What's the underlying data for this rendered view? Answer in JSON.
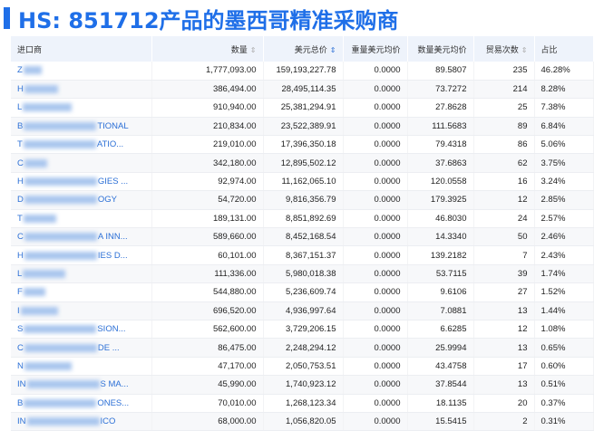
{
  "title": "HS: 851712产品的墨西哥精准采购商",
  "accent": "#1f6fe8",
  "columns": [
    {
      "label": "进口商",
      "sortable": false
    },
    {
      "label": "数量",
      "sortable": true
    },
    {
      "label": "美元总价",
      "sortable": true,
      "sort": "descending"
    },
    {
      "label": "重量美元均价",
      "sortable": false
    },
    {
      "label": "数量美元均价",
      "sortable": false
    },
    {
      "label": "贸易次数",
      "sortable": true
    },
    {
      "label": "占比",
      "sortable": false
    }
  ],
  "rows": [
    {
      "name_start": "Z",
      "name_end": "",
      "qty": "1,777,093.00",
      "total": "159,193,227.78",
      "wavg": "0.0000",
      "qavg": "89.5807",
      "count": "235",
      "pct": "46.28%"
    },
    {
      "name_start": "H",
      "name_end": "",
      "qty": "386,494.00",
      "total": "28,495,114.35",
      "wavg": "0.0000",
      "qavg": "73.7272",
      "count": "214",
      "pct": "8.28%"
    },
    {
      "name_start": "L",
      "name_end": "",
      "qty": "910,940.00",
      "total": "25,381,294.91",
      "wavg": "0.0000",
      "qavg": "27.8628",
      "count": "25",
      "pct": "7.38%"
    },
    {
      "name_start": "B",
      "name_end": "TIONAL",
      "qty": "210,834.00",
      "total": "23,522,389.91",
      "wavg": "0.0000",
      "qavg": "111.5683",
      "count": "89",
      "pct": "6.84%"
    },
    {
      "name_start": "T",
      "name_end": "ATIO...",
      "qty": "219,010.00",
      "total": "17,396,350.18",
      "wavg": "0.0000",
      "qavg": "79.4318",
      "count": "86",
      "pct": "5.06%"
    },
    {
      "name_start": "C",
      "name_end": "",
      "qty": "342,180.00",
      "total": "12,895,502.12",
      "wavg": "0.0000",
      "qavg": "37.6863",
      "count": "62",
      "pct": "3.75%"
    },
    {
      "name_start": "H",
      "name_end": "GIES ...",
      "qty": "92,974.00",
      "total": "11,162,065.10",
      "wavg": "0.0000",
      "qavg": "120.0558",
      "count": "16",
      "pct": "3.24%"
    },
    {
      "name_start": "D",
      "name_end": "OGY",
      "qty": "54,720.00",
      "total": "9,816,356.79",
      "wavg": "0.0000",
      "qavg": "179.3925",
      "count": "12",
      "pct": "2.85%"
    },
    {
      "name_start": "T",
      "name_end": "",
      "qty": "189,131.00",
      "total": "8,851,892.69",
      "wavg": "0.0000",
      "qavg": "46.8030",
      "count": "24",
      "pct": "2.57%"
    },
    {
      "name_start": "C",
      "name_end": "A INN...",
      "qty": "589,660.00",
      "total": "8,452,168.54",
      "wavg": "0.0000",
      "qavg": "14.3340",
      "count": "50",
      "pct": "2.46%"
    },
    {
      "name_start": "H",
      "name_end": "IES D...",
      "qty": "60,101.00",
      "total": "8,367,151.37",
      "wavg": "0.0000",
      "qavg": "139.2182",
      "count": "7",
      "pct": "2.43%"
    },
    {
      "name_start": "L",
      "name_end": "",
      "qty": "111,336.00",
      "total": "5,980,018.38",
      "wavg": "0.0000",
      "qavg": "53.7115",
      "count": "39",
      "pct": "1.74%"
    },
    {
      "name_start": "F",
      "name_end": "",
      "qty": "544,880.00",
      "total": "5,236,609.74",
      "wavg": "0.0000",
      "qavg": "9.6106",
      "count": "27",
      "pct": "1.52%"
    },
    {
      "name_start": "I",
      "name_end": "",
      "qty": "696,520.00",
      "total": "4,936,997.64",
      "wavg": "0.0000",
      "qavg": "7.0881",
      "count": "13",
      "pct": "1.44%"
    },
    {
      "name_start": "S",
      "name_end": "SION...",
      "qty": "562,600.00",
      "total": "3,729,206.15",
      "wavg": "0.0000",
      "qavg": "6.6285",
      "count": "12",
      "pct": "1.08%"
    },
    {
      "name_start": "C",
      "name_end": "DE ...",
      "qty": "86,475.00",
      "total": "2,248,294.12",
      "wavg": "0.0000",
      "qavg": "25.9994",
      "count": "13",
      "pct": "0.65%"
    },
    {
      "name_start": "N",
      "name_end": "",
      "qty": "47,170.00",
      "total": "2,050,753.51",
      "wavg": "0.0000",
      "qavg": "43.4758",
      "count": "17",
      "pct": "0.60%"
    },
    {
      "name_start": "IN",
      "name_end": "S MA...",
      "qty": "45,990.00",
      "total": "1,740,923.12",
      "wavg": "0.0000",
      "qavg": "37.8544",
      "count": "13",
      "pct": "0.51%"
    },
    {
      "name_start": "B",
      "name_end": "ONES...",
      "qty": "70,010.00",
      "total": "1,268,123.34",
      "wavg": "0.0000",
      "qavg": "18.1135",
      "count": "20",
      "pct": "0.37%"
    },
    {
      "name_start": "IN",
      "name_end": "ICO",
      "qty": "68,000.00",
      "total": "1,056,820.05",
      "wavg": "0.0000",
      "qavg": "15.5415",
      "count": "2",
      "pct": "0.31%"
    }
  ]
}
